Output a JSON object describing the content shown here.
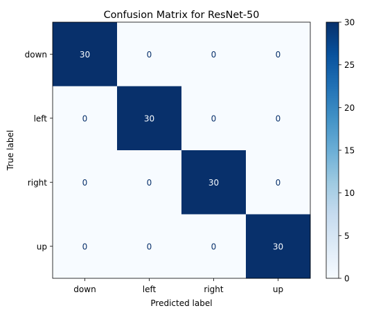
{
  "chart_data": {
    "type": "heatmap",
    "title": "Confusion Matrix for ResNet-50",
    "xlabel": "Predicted label",
    "ylabel": "True label",
    "x_categories": [
      "down",
      "left",
      "right",
      "up"
    ],
    "y_categories": [
      "down",
      "left",
      "right",
      "up"
    ],
    "values": [
      [
        30,
        0,
        0,
        0
      ],
      [
        0,
        30,
        0,
        0
      ],
      [
        0,
        0,
        30,
        0
      ],
      [
        0,
        0,
        0,
        30
      ]
    ],
    "colormap": "Blues",
    "color_min": "#f7fbff",
    "color_max": "#08306b",
    "value_range": [
      0,
      30
    ],
    "colorbar_ticks": [
      0,
      5,
      10,
      15,
      20,
      25,
      30
    ],
    "grid": false,
    "colorbar": "right"
  }
}
